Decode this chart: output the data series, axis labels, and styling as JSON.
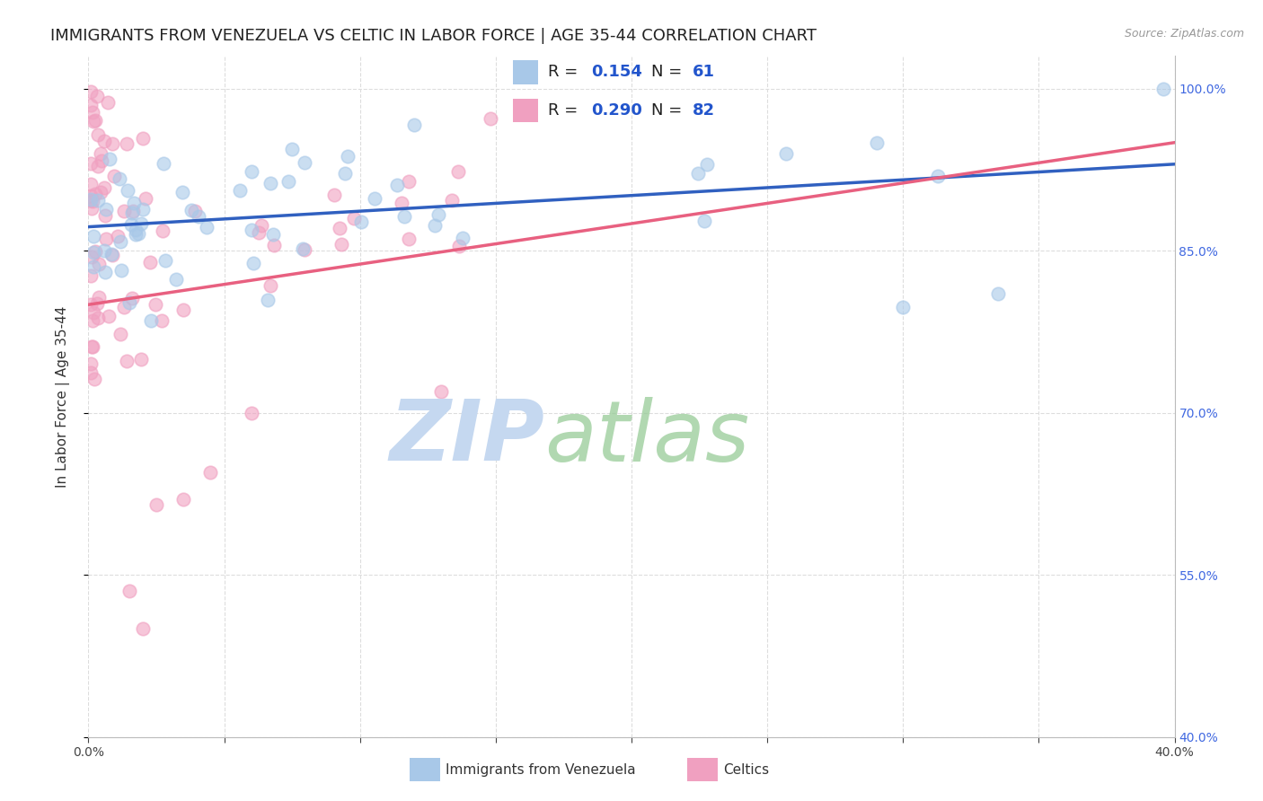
{
  "title": "IMMIGRANTS FROM VENEZUELA VS CELTIC IN LABOR FORCE | AGE 35-44 CORRELATION CHART",
  "source": "Source: ZipAtlas.com",
  "ylabel": "In Labor Force | Age 35-44",
  "x_min": 0.0,
  "x_max": 0.4,
  "y_min": 0.4,
  "y_max": 1.03,
  "x_ticks": [
    0.0,
    0.05,
    0.1,
    0.15,
    0.2,
    0.25,
    0.3,
    0.35,
    0.4
  ],
  "x_tick_labels": [
    "0.0%",
    "",
    "",
    "",
    "",
    "",
    "",
    "",
    "40.0%"
  ],
  "y_ticks": [
    0.4,
    0.55,
    0.7,
    0.85,
    1.0
  ],
  "y_tick_labels": [
    "40.0%",
    "55.0%",
    "70.0%",
    "85.0%",
    "100.0%"
  ],
  "grid_color": "#dddddd",
  "background_color": "#ffffff",
  "watermark_zip": "ZIP",
  "watermark_atlas": "atlas",
  "watermark_color_zip": "#c5d8f0",
  "watermark_color_atlas": "#a0c8a0",
  "legend_R1": "0.154",
  "legend_N1": "61",
  "legend_R2": "0.290",
  "legend_N2": "82",
  "series1_color": "#a8c8e8",
  "series2_color": "#f0a0c0",
  "line1_color": "#3060c0",
  "line2_color": "#e86080",
  "title_fontsize": 13,
  "axis_label_fontsize": 11,
  "tick_fontsize": 10,
  "legend_fontsize": 13
}
